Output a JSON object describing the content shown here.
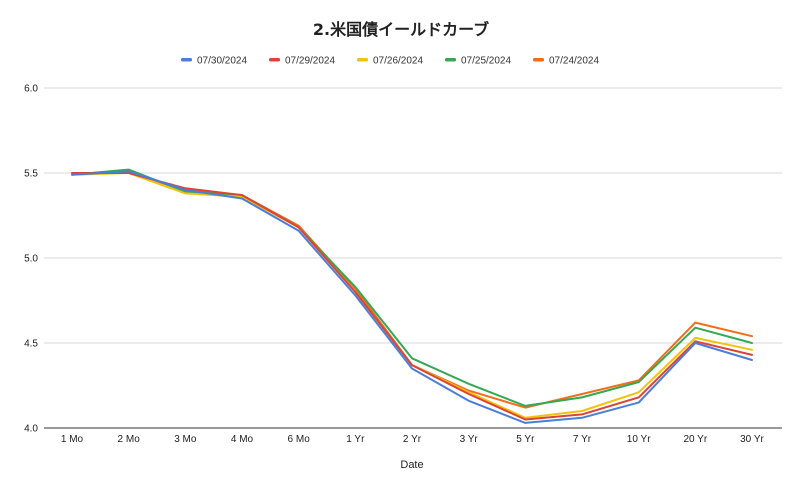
{
  "chart_data": {
    "type": "line",
    "title": "2.米国債イールドカーブ",
    "xlabel": "Date",
    "ylabel": "",
    "ylim": [
      4.0,
      6.0
    ],
    "yticks": [
      "6.0",
      "5.5",
      "5.0",
      "4.5",
      "4.0"
    ],
    "ytick_values": [
      6.0,
      5.5,
      5.0,
      4.5,
      4.0
    ],
    "grid": true,
    "legend_position": "top",
    "categories": [
      "1 Mo",
      "2 Mo",
      "3 Mo",
      "4 Mo",
      "6 Mo",
      "1 Yr",
      "2 Yr",
      "3 Yr",
      "5 Yr",
      "7 Yr",
      "10 Yr",
      "20 Yr",
      "30 Yr"
    ],
    "series": [
      {
        "name": "07/30/2024",
        "color": "#4a7fd8",
        "values": [
          5.49,
          5.51,
          5.4,
          5.35,
          5.16,
          4.78,
          4.35,
          4.16,
          4.03,
          4.06,
          4.15,
          4.5,
          4.4
        ]
      },
      {
        "name": "07/29/2024",
        "color": "#db4437",
        "values": [
          5.5,
          5.5,
          5.41,
          5.37,
          5.18,
          4.8,
          4.37,
          4.2,
          4.05,
          4.08,
          4.18,
          4.51,
          4.43
        ]
      },
      {
        "name": "07/26/2024",
        "color": "#f4c20d",
        "values": [
          5.49,
          5.5,
          5.38,
          5.36,
          5.18,
          4.8,
          4.37,
          4.21,
          4.06,
          4.1,
          4.21,
          4.53,
          4.46
        ]
      },
      {
        "name": "07/25/2024",
        "color": "#34a853",
        "values": [
          5.49,
          5.52,
          5.39,
          5.37,
          5.18,
          4.83,
          4.41,
          4.26,
          4.13,
          4.18,
          4.27,
          4.59,
          4.5
        ]
      },
      {
        "name": "07/24/2024",
        "color": "#f46d1b",
        "values": [
          5.5,
          5.5,
          5.4,
          5.37,
          5.19,
          4.82,
          4.37,
          4.22,
          4.12,
          4.2,
          4.28,
          4.62,
          4.54
        ]
      }
    ]
  }
}
